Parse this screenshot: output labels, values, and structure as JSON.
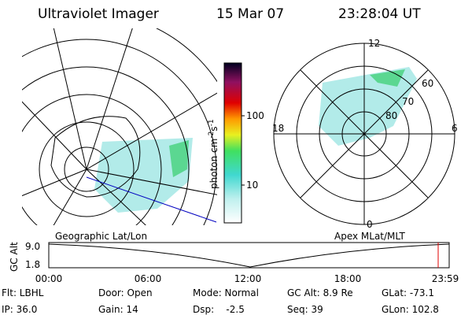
{
  "header": {
    "title": "Ultraviolet Imager",
    "date": "15 Mar 07",
    "time": "23:28:04 UT"
  },
  "left_map": {
    "label": "Geographic Lat/Lon"
  },
  "colorbar": {
    "unit_a": "photon cm",
    "exp_a": "-2",
    "unit_b": "s",
    "exp_b": "-1",
    "ticks": [
      "100",
      "10"
    ]
  },
  "right_map": {
    "label": "Apex MLat/MLT",
    "mlt_labels": [
      "12",
      "18",
      "6",
      "0"
    ],
    "lat_labels": [
      "60",
      "70",
      "80"
    ]
  },
  "altitude_plot": {
    "axis_label": "GC Alt",
    "yticks": [
      "9.0",
      "1.8"
    ],
    "xticks": [
      "00:00",
      "06:00",
      "12:00",
      "18:00",
      "23:59"
    ]
  },
  "status": {
    "rows": [
      [
        "Flt: LBHL",
        "Door: Open",
        "Mode: Normal",
        "GC Alt: 8.9 Re",
        "GLat: -73.1"
      ],
      [
        "IP: 36.0",
        "Gain: 14",
        "Dsp:    -2.5",
        "Seq: 39",
        "GLon: 102.8"
      ]
    ]
  }
}
